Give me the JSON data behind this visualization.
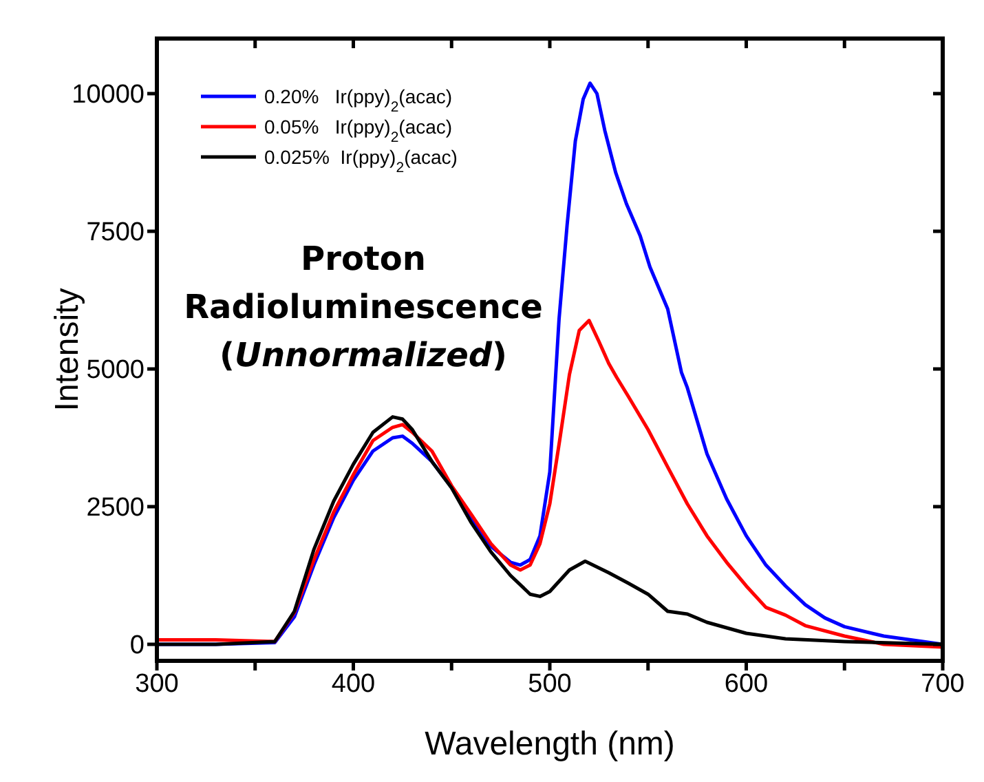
{
  "chart_data": {
    "type": "line",
    "xlabel": "Wavelength (nm)",
    "ylabel": "Intensity",
    "annotations": [
      "Proton Radioluminescence (Unnormalized)"
    ],
    "xlim": [
      300,
      700
    ],
    "ylim": [
      -300,
      11000
    ],
    "xticks": [
      300,
      {
        "value": 350,
        "label": null
      },
      400,
      {
        "value": 450,
        "label": null
      },
      500,
      {
        "value": 550,
        "label": null
      },
      600,
      {
        "value": 650,
        "label": null
      },
      700
    ],
    "yticks": [
      0,
      2500,
      5000,
      7500,
      10000
    ],
    "legend": "top left",
    "marker": "none",
    "line_style": "solid",
    "series": [
      {
        "name": "0.20%   Ir(ppy)$_{2}$(acac)",
        "color": "#0000ff",
        "x": [
          300,
          330,
          360,
          370,
          380,
          390,
          400,
          410,
          420,
          425,
          430,
          440,
          450,
          460,
          470,
          480,
          485,
          490,
          495,
          500,
          504.7,
          508.8,
          513,
          517,
          520.5,
          524,
          528,
          533.5,
          539,
          546,
          551,
          560,
          567,
          570,
          580,
          590,
          600,
          610,
          620,
          630,
          640,
          650,
          670,
          690,
          700
        ],
        "values": [
          0,
          0,
          30,
          500,
          1450,
          2300,
          2980,
          3510,
          3750,
          3780,
          3650,
          3320,
          2850,
          2310,
          1780,
          1490,
          1440,
          1540,
          1970,
          3130,
          5900,
          7610,
          9140,
          9900,
          10190,
          10000,
          9330,
          8570,
          8000,
          7420,
          6850,
          6090,
          4940,
          4660,
          3460,
          2640,
          1970,
          1440,
          1060,
          720,
          480,
          320,
          150,
          50,
          0
        ]
      },
      {
        "name": "0.05%   Ir(ppy)$_{2}$(acac)",
        "color": "#ff0000",
        "x": [
          300,
          330,
          360,
          370,
          380,
          390,
          400,
          410,
          420,
          425,
          430,
          440,
          450,
          460,
          470,
          480,
          485,
          490,
          495,
          500,
          505,
          510,
          515,
          520,
          525,
          530,
          534,
          540,
          550,
          560,
          570,
          580,
          590,
          600,
          610,
          620,
          630,
          650,
          670,
          700
        ],
        "values": [
          80,
          80,
          50,
          580,
          1540,
          2400,
          3080,
          3700,
          3940,
          3990,
          3850,
          3510,
          2880,
          2360,
          1830,
          1440,
          1350,
          1440,
          1830,
          2550,
          3700,
          4900,
          5700,
          5880,
          5500,
          5100,
          4850,
          4500,
          3900,
          3220,
          2550,
          1970,
          1490,
          1060,
          670,
          530,
          340,
          150,
          0,
          -50
        ]
      },
      {
        "name": "0.025%  Ir(ppy)$_{2}$(acac)",
        "color": "#000000",
        "x": [
          300,
          330,
          360,
          370,
          380,
          390,
          400,
          410,
          420,
          425,
          430,
          440,
          450,
          460,
          470,
          480,
          490,
          495,
          500,
          510,
          518,
          530,
          540,
          550,
          560,
          570,
          580,
          600,
          620,
          650,
          700
        ],
        "values": [
          0,
          0,
          50,
          600,
          1730,
          2600,
          3270,
          3850,
          4130,
          4090,
          3900,
          3320,
          2840,
          2210,
          1680,
          1250,
          910,
          870,
          960,
          1350,
          1510,
          1300,
          1110,
          910,
          600,
          550,
          400,
          200,
          100,
          50,
          0
        ]
      }
    ]
  }
}
